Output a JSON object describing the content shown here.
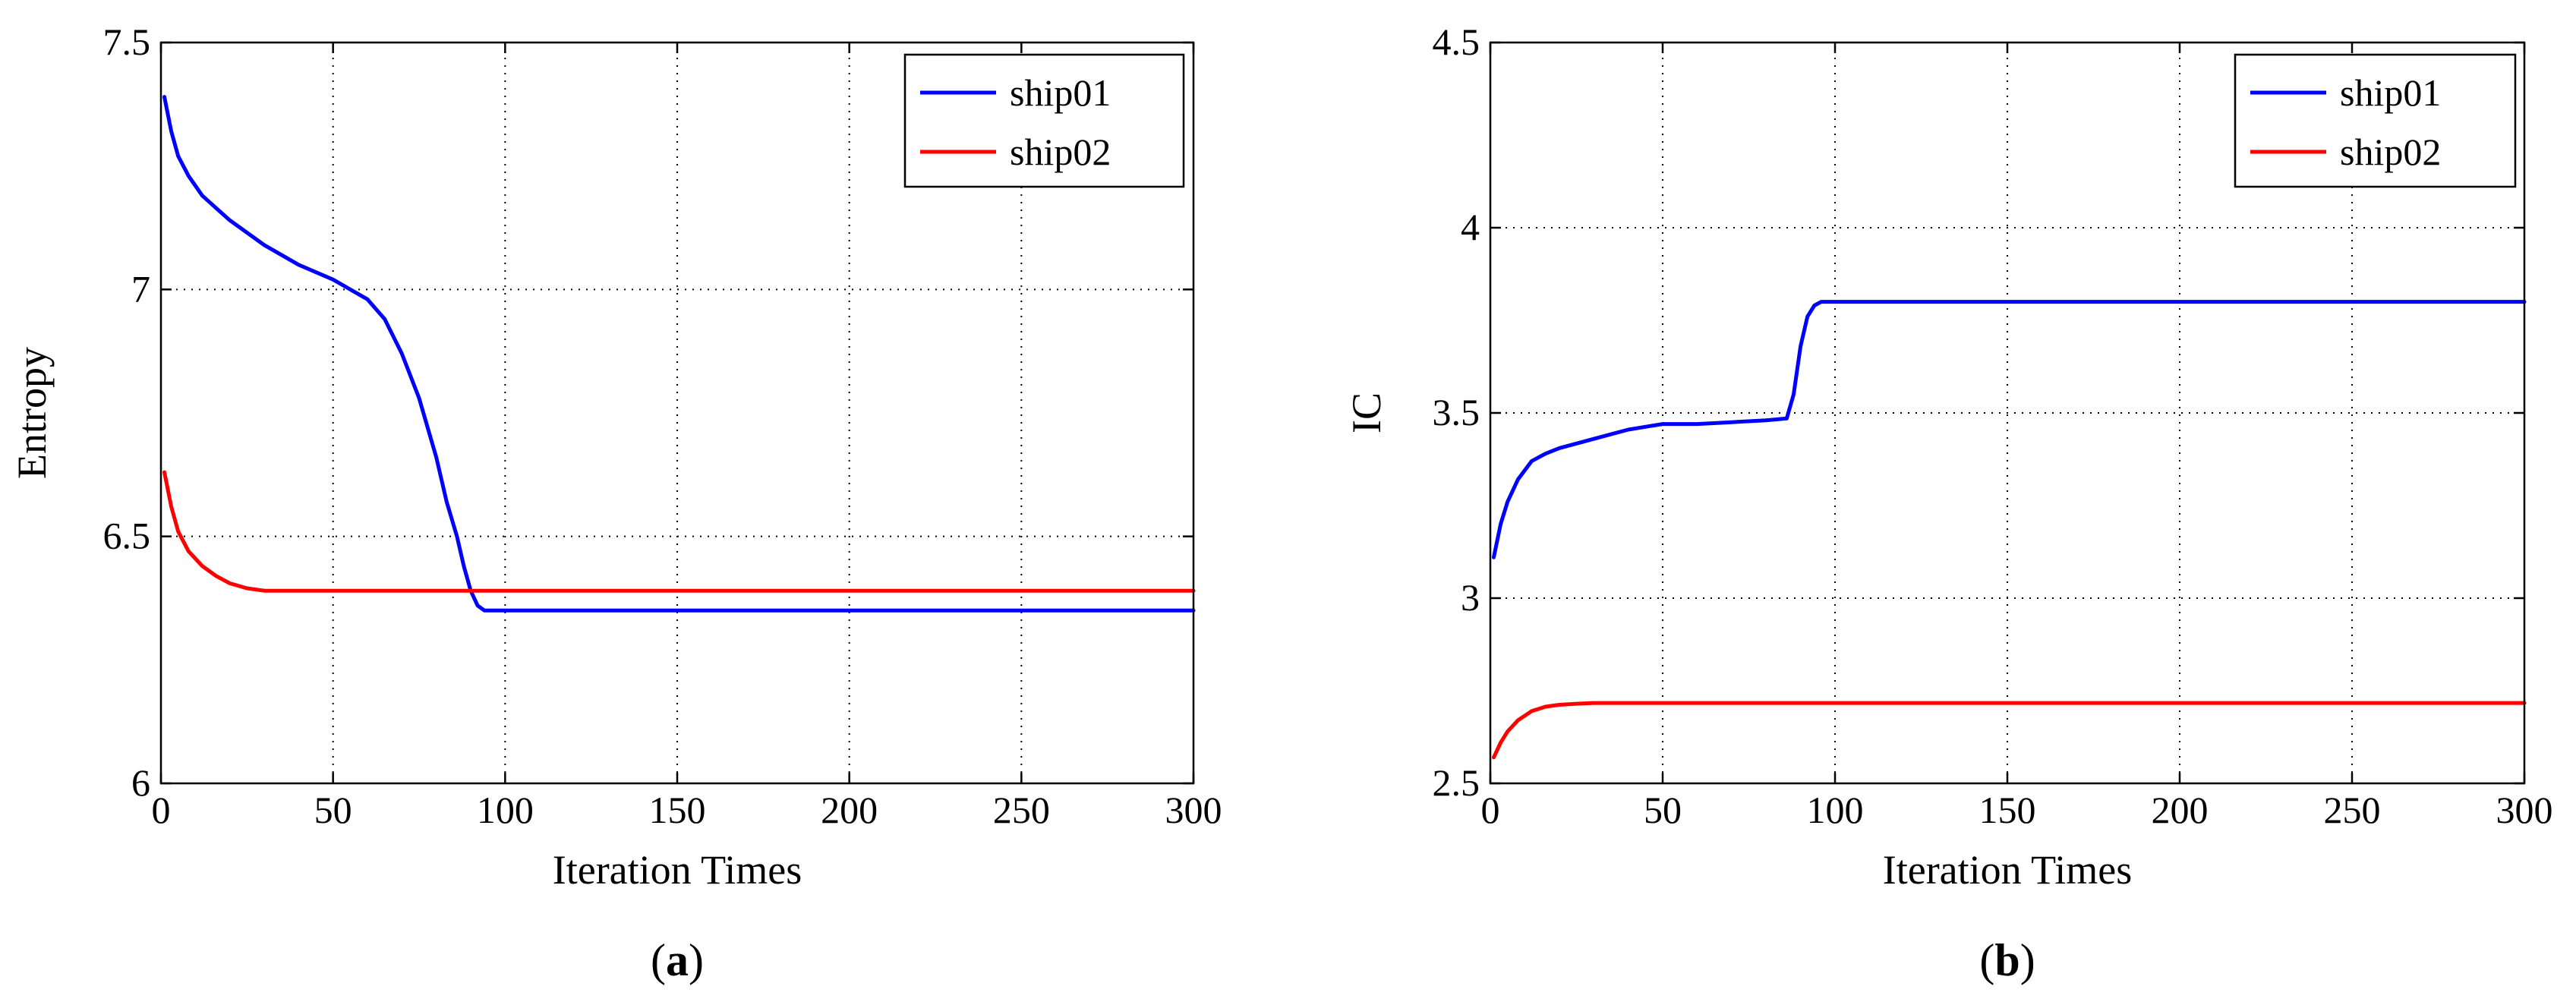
{
  "colors": {
    "ship01": "#0000ff",
    "ship02": "#ff0000",
    "grid": "#000000",
    "axes": "#000000"
  },
  "chart_data": [
    {
      "id": "a",
      "type": "line",
      "caption_open": "(",
      "caption_letter": "a",
      "caption_close": ")",
      "title": "",
      "xlabel": "Iteration Times",
      "ylabel": "Entropy",
      "xlim": [
        0,
        300
      ],
      "ylim": [
        6,
        7.5
      ],
      "xticks": [
        0,
        50,
        100,
        150,
        200,
        250,
        300
      ],
      "xtick_labels": [
        "0",
        "50",
        "100",
        "150",
        "200",
        "250",
        "300"
      ],
      "yticks": [
        6,
        6.5,
        7,
        7.5
      ],
      "ytick_labels": [
        "6",
        "6.5",
        "7",
        "7.5"
      ],
      "grid": true,
      "legend_position": "top-right",
      "series": [
        {
          "name": "ship01",
          "color": "#0000ff",
          "x": [
            1,
            3,
            5,
            8,
            12,
            16,
            20,
            30,
            40,
            50,
            55,
            60,
            65,
            70,
            75,
            80,
            83,
            86,
            88,
            90,
            92,
            94,
            96,
            100,
            150,
            200,
            250,
            300
          ],
          "y": [
            7.39,
            7.32,
            7.27,
            7.23,
            7.19,
            7.165,
            7.14,
            7.09,
            7.05,
            7.02,
            7.0,
            6.98,
            6.94,
            6.87,
            6.78,
            6.66,
            6.57,
            6.5,
            6.44,
            6.39,
            6.36,
            6.35,
            6.35,
            6.35,
            6.35,
            6.35,
            6.35,
            6.35
          ]
        },
        {
          "name": "ship02",
          "color": "#ff0000",
          "x": [
            1,
            3,
            5,
            8,
            12,
            16,
            20,
            25,
            30,
            40,
            50,
            100,
            150,
            200,
            250,
            300
          ],
          "y": [
            6.63,
            6.56,
            6.51,
            6.47,
            6.44,
            6.42,
            6.405,
            6.395,
            6.39,
            6.39,
            6.39,
            6.39,
            6.39,
            6.39,
            6.39,
            6.39
          ]
        }
      ]
    },
    {
      "id": "b",
      "type": "line",
      "caption_open": "(",
      "caption_letter": "b",
      "caption_close": ")",
      "title": "",
      "xlabel": "Iteration Times",
      "ylabel": "IC",
      "xlim": [
        0,
        300
      ],
      "ylim": [
        2.5,
        4.5
      ],
      "xticks": [
        0,
        50,
        100,
        150,
        200,
        250,
        300
      ],
      "xtick_labels": [
        "0",
        "50",
        "100",
        "150",
        "200",
        "250",
        "300"
      ],
      "yticks": [
        2.5,
        3,
        3.5,
        4,
        4.5
      ],
      "ytick_labels": [
        "2.5",
        "3",
        "3.5",
        "4",
        "4.5"
      ],
      "grid": true,
      "legend_position": "top-right",
      "series": [
        {
          "name": "ship01",
          "color": "#0000ff",
          "x": [
            1,
            3,
            5,
            8,
            12,
            16,
            20,
            30,
            40,
            50,
            60,
            70,
            80,
            86,
            88,
            90,
            92,
            94,
            96,
            100,
            150,
            200,
            250,
            300
          ],
          "y": [
            3.11,
            3.2,
            3.26,
            3.32,
            3.37,
            3.39,
            3.405,
            3.43,
            3.455,
            3.47,
            3.47,
            3.475,
            3.48,
            3.485,
            3.55,
            3.68,
            3.76,
            3.79,
            3.8,
            3.8,
            3.8,
            3.8,
            3.8,
            3.8
          ]
        },
        {
          "name": "ship02",
          "color": "#ff0000",
          "x": [
            1,
            3,
            5,
            8,
            12,
            16,
            20,
            25,
            30,
            50,
            100,
            150,
            200,
            250,
            300
          ],
          "y": [
            2.57,
            2.61,
            2.64,
            2.67,
            2.695,
            2.707,
            2.712,
            2.715,
            2.717,
            2.717,
            2.717,
            2.717,
            2.717,
            2.717,
            2.717
          ]
        }
      ]
    }
  ]
}
